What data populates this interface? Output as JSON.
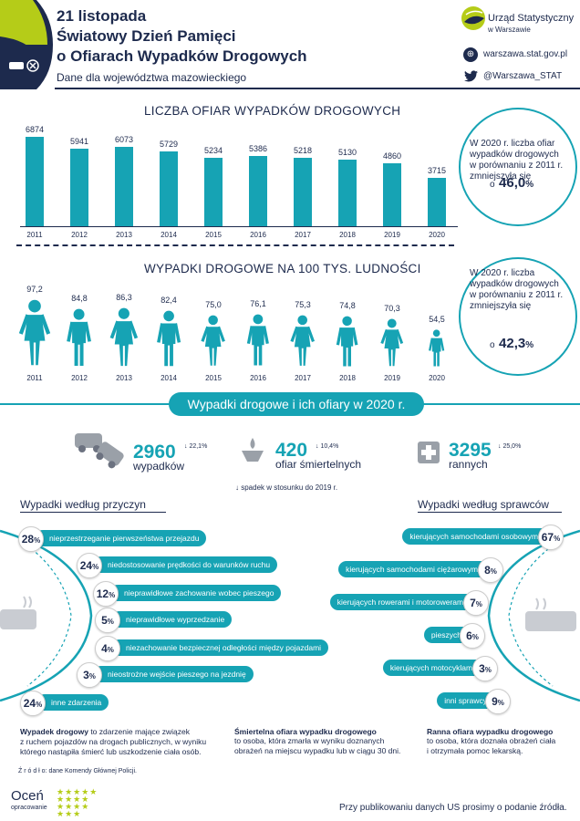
{
  "header": {
    "title_lines": [
      "21 listopada",
      "Światowy Dzień Pamięci",
      "o Ofiarach Wypadków Drogowych"
    ],
    "subtitle": "Dane dla województwa mazowieckiego",
    "brand_name_1": "Urząd Statystyczny",
    "brand_name_2": "w Warszawie",
    "website": "warszawa.stat.gov.pl",
    "twitter": "@Warszawa_STAT",
    "website_icon": "globe-icon",
    "twitter_icon": "twitter-icon"
  },
  "colors": {
    "accent": "#16a3b4",
    "navy": "#1d2a4d",
    "lime": "#b5cc18"
  },
  "victims_chart": {
    "title": "LICZBA OFIAR WYPADKÓW DROGOWYCH",
    "callout_lines": [
      "W 2020 r. liczba ofiar",
      "wypadków drogowych",
      "w porównaniu z 2011 r.",
      "zmniejszyła się"
    ],
    "callout_prefix": "o",
    "callout_value": "46,0",
    "callout_unit": "%"
  },
  "rate_chart": {
    "title": "WYPADKI DROGOWE NA 100 TYS. LUDNOŚCI",
    "callout_lines": [
      "W 2020 r. liczba",
      "wypadków drogowych",
      "w porównaniu z 2011 r.",
      "zmniejszyła się"
    ],
    "callout_prefix": "o",
    "callout_value": "42,3",
    "callout_unit": "%"
  },
  "chart_data": [
    {
      "type": "bar",
      "title": "LICZBA OFIAR WYPADKÓW DROGOWYCH",
      "categories": [
        "2011",
        "2012",
        "2013",
        "2014",
        "2015",
        "2016",
        "2017",
        "2018",
        "2019",
        "2020"
      ],
      "values": [
        6874,
        5941,
        6073,
        5729,
        5234,
        5386,
        5218,
        5130,
        4860,
        3715
      ],
      "labels": [
        "6874",
        "5941",
        "6073",
        "5729",
        "5234",
        "5386",
        "5218",
        "5130",
        "4860",
        "3715"
      ]
    },
    {
      "type": "bar",
      "title": "WYPADKI DROGOWE NA 100 TYS. LUDNOŚCI",
      "categories": [
        "2011",
        "2012",
        "2013",
        "2014",
        "2015",
        "2016",
        "2017",
        "2018",
        "2019",
        "2020"
      ],
      "values": [
        97.2,
        84.8,
        86.3,
        82.4,
        75.0,
        76.1,
        75.3,
        74.8,
        70.3,
        54.5
      ],
      "labels": [
        "97,2",
        "84,8",
        "86,3",
        "82,4",
        "75,0",
        "76,1",
        "75,3",
        "74,8",
        "70,3",
        "54,5"
      ],
      "person_types": [
        "female",
        "male",
        "female",
        "male",
        "female",
        "male",
        "female",
        "male",
        "female",
        "male"
      ]
    }
  ],
  "banner": {
    "title": "Wypadki drogowe i ich ofiary w 2020 r."
  },
  "stats": [
    {
      "value": "2960",
      "label": "wypadków",
      "change": "22,1%",
      "icon": "car-crash-icon"
    },
    {
      "value": "420",
      "label": "ofiar śmiertelnych",
      "change": "10,4%",
      "icon": "candle-icon"
    },
    {
      "value": "3295",
      "label": "rannych",
      "change": "25,0%",
      "icon": "cross-icon"
    }
  ],
  "stats_note": "spadek w stosunku do 2019 r.",
  "causes": {
    "title": "Wypadki według przyczyn",
    "items": [
      {
        "pct": "28",
        "label": "nieprzestrzeganie pierwszeństwa przejazdu"
      },
      {
        "pct": "24",
        "label": "niedostosowanie prędkości do warunków ruchu"
      },
      {
        "pct": "12",
        "label": "nieprawidłowe zachowanie  wobec pieszego"
      },
      {
        "pct": "5",
        "label": "nieprawidłowe wyprzedzanie"
      },
      {
        "pct": "4",
        "label": "niezachowanie bezpiecznej odległości między pojazdami"
      },
      {
        "pct": "3",
        "label": "nieostrożne wejście pieszego na jezdnię"
      },
      {
        "pct": "24",
        "label": "inne zdarzenia"
      }
    ]
  },
  "perpetrators": {
    "title": "Wypadki według sprawców",
    "items": [
      {
        "pct": "67",
        "label": "kierujących samochodami osobowymi"
      },
      {
        "pct": "8",
        "label": "kierujących samochodami ciężarowymi"
      },
      {
        "pct": "7",
        "label": "kierujących rowerami i motorowerami"
      },
      {
        "pct": "6",
        "label": "pieszych"
      },
      {
        "pct": "3",
        "label": "kierujących motocyklami"
      },
      {
        "pct": "9",
        "label": "inni sprawcy"
      }
    ]
  },
  "definitions": [
    {
      "head": "Wypadek drogowy",
      "text_inline": " to zdarzenie mające związek",
      "text_lines": [
        "z ruchem pojazdów na drogach publicznych, w wyniku",
        "którego nastąpiła śmierć lub uszkodzenie ciała osób."
      ]
    },
    {
      "head": "Śmiertelna ofiara wypadku drogowego",
      "text_inline": "",
      "text_lines": [
        "to osoba, która zmarła w wyniku doznanych",
        "obrażeń na miejscu wypadku lub w ciągu 30 dni."
      ]
    },
    {
      "head": "Ranna ofiara wypadku drogowego",
      "text_inline": "",
      "text_lines": [
        "to osoba, która doznała obrażeń ciała",
        "i otrzymała pomoc lekarską."
      ]
    }
  ],
  "source": "Ź r ó d ł o: dane Komendy Głównej Policji.",
  "rate_widget": {
    "title": "Oceń",
    "subtitle": "opracowanie"
  },
  "footer": "Przy publikowaniu danych US prosimy o podanie źródła."
}
